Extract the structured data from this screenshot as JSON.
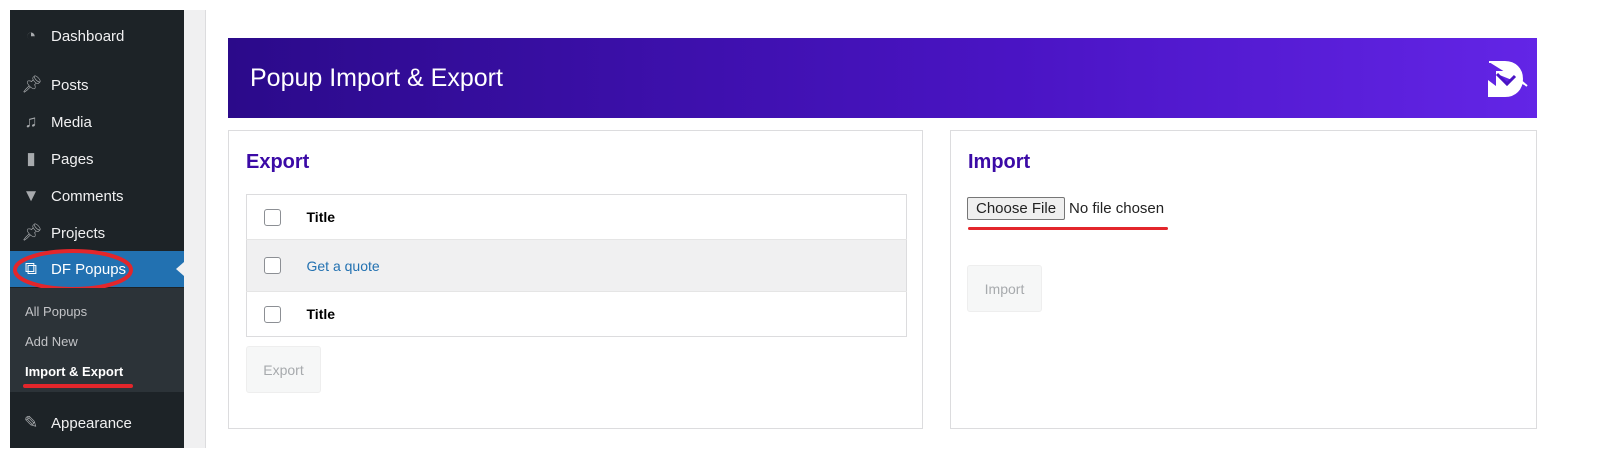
{
  "sidebar": {
    "items": [
      {
        "label": "Dashboard",
        "icon": "dashboard-icon"
      },
      {
        "label": "Posts",
        "icon": "pin-icon"
      },
      {
        "label": "Media",
        "icon": "media-icon"
      },
      {
        "label": "Pages",
        "icon": "pages-icon"
      },
      {
        "label": "Comments",
        "icon": "comment-icon"
      },
      {
        "label": "Projects",
        "icon": "pin-icon"
      },
      {
        "label": "DF Popups",
        "icon": "popup-icon"
      },
      {
        "label": "Appearance",
        "icon": "brush-icon"
      }
    ],
    "submenu": [
      "All Popups",
      "Add New",
      "Import & Export"
    ]
  },
  "header": {
    "title": "Popup Import & Export"
  },
  "export": {
    "title": "Export",
    "header_col": "Title",
    "rows": [
      "Get a quote"
    ],
    "footer_col": "Title",
    "button": "Export"
  },
  "import": {
    "title": "Import",
    "choose_file": "Choose File",
    "no_file": "No file chosen",
    "button": "Import"
  },
  "colors": {
    "accent": "#3b0aa6",
    "highlight": "#e3262b",
    "wp_blue": "#2271b1"
  }
}
